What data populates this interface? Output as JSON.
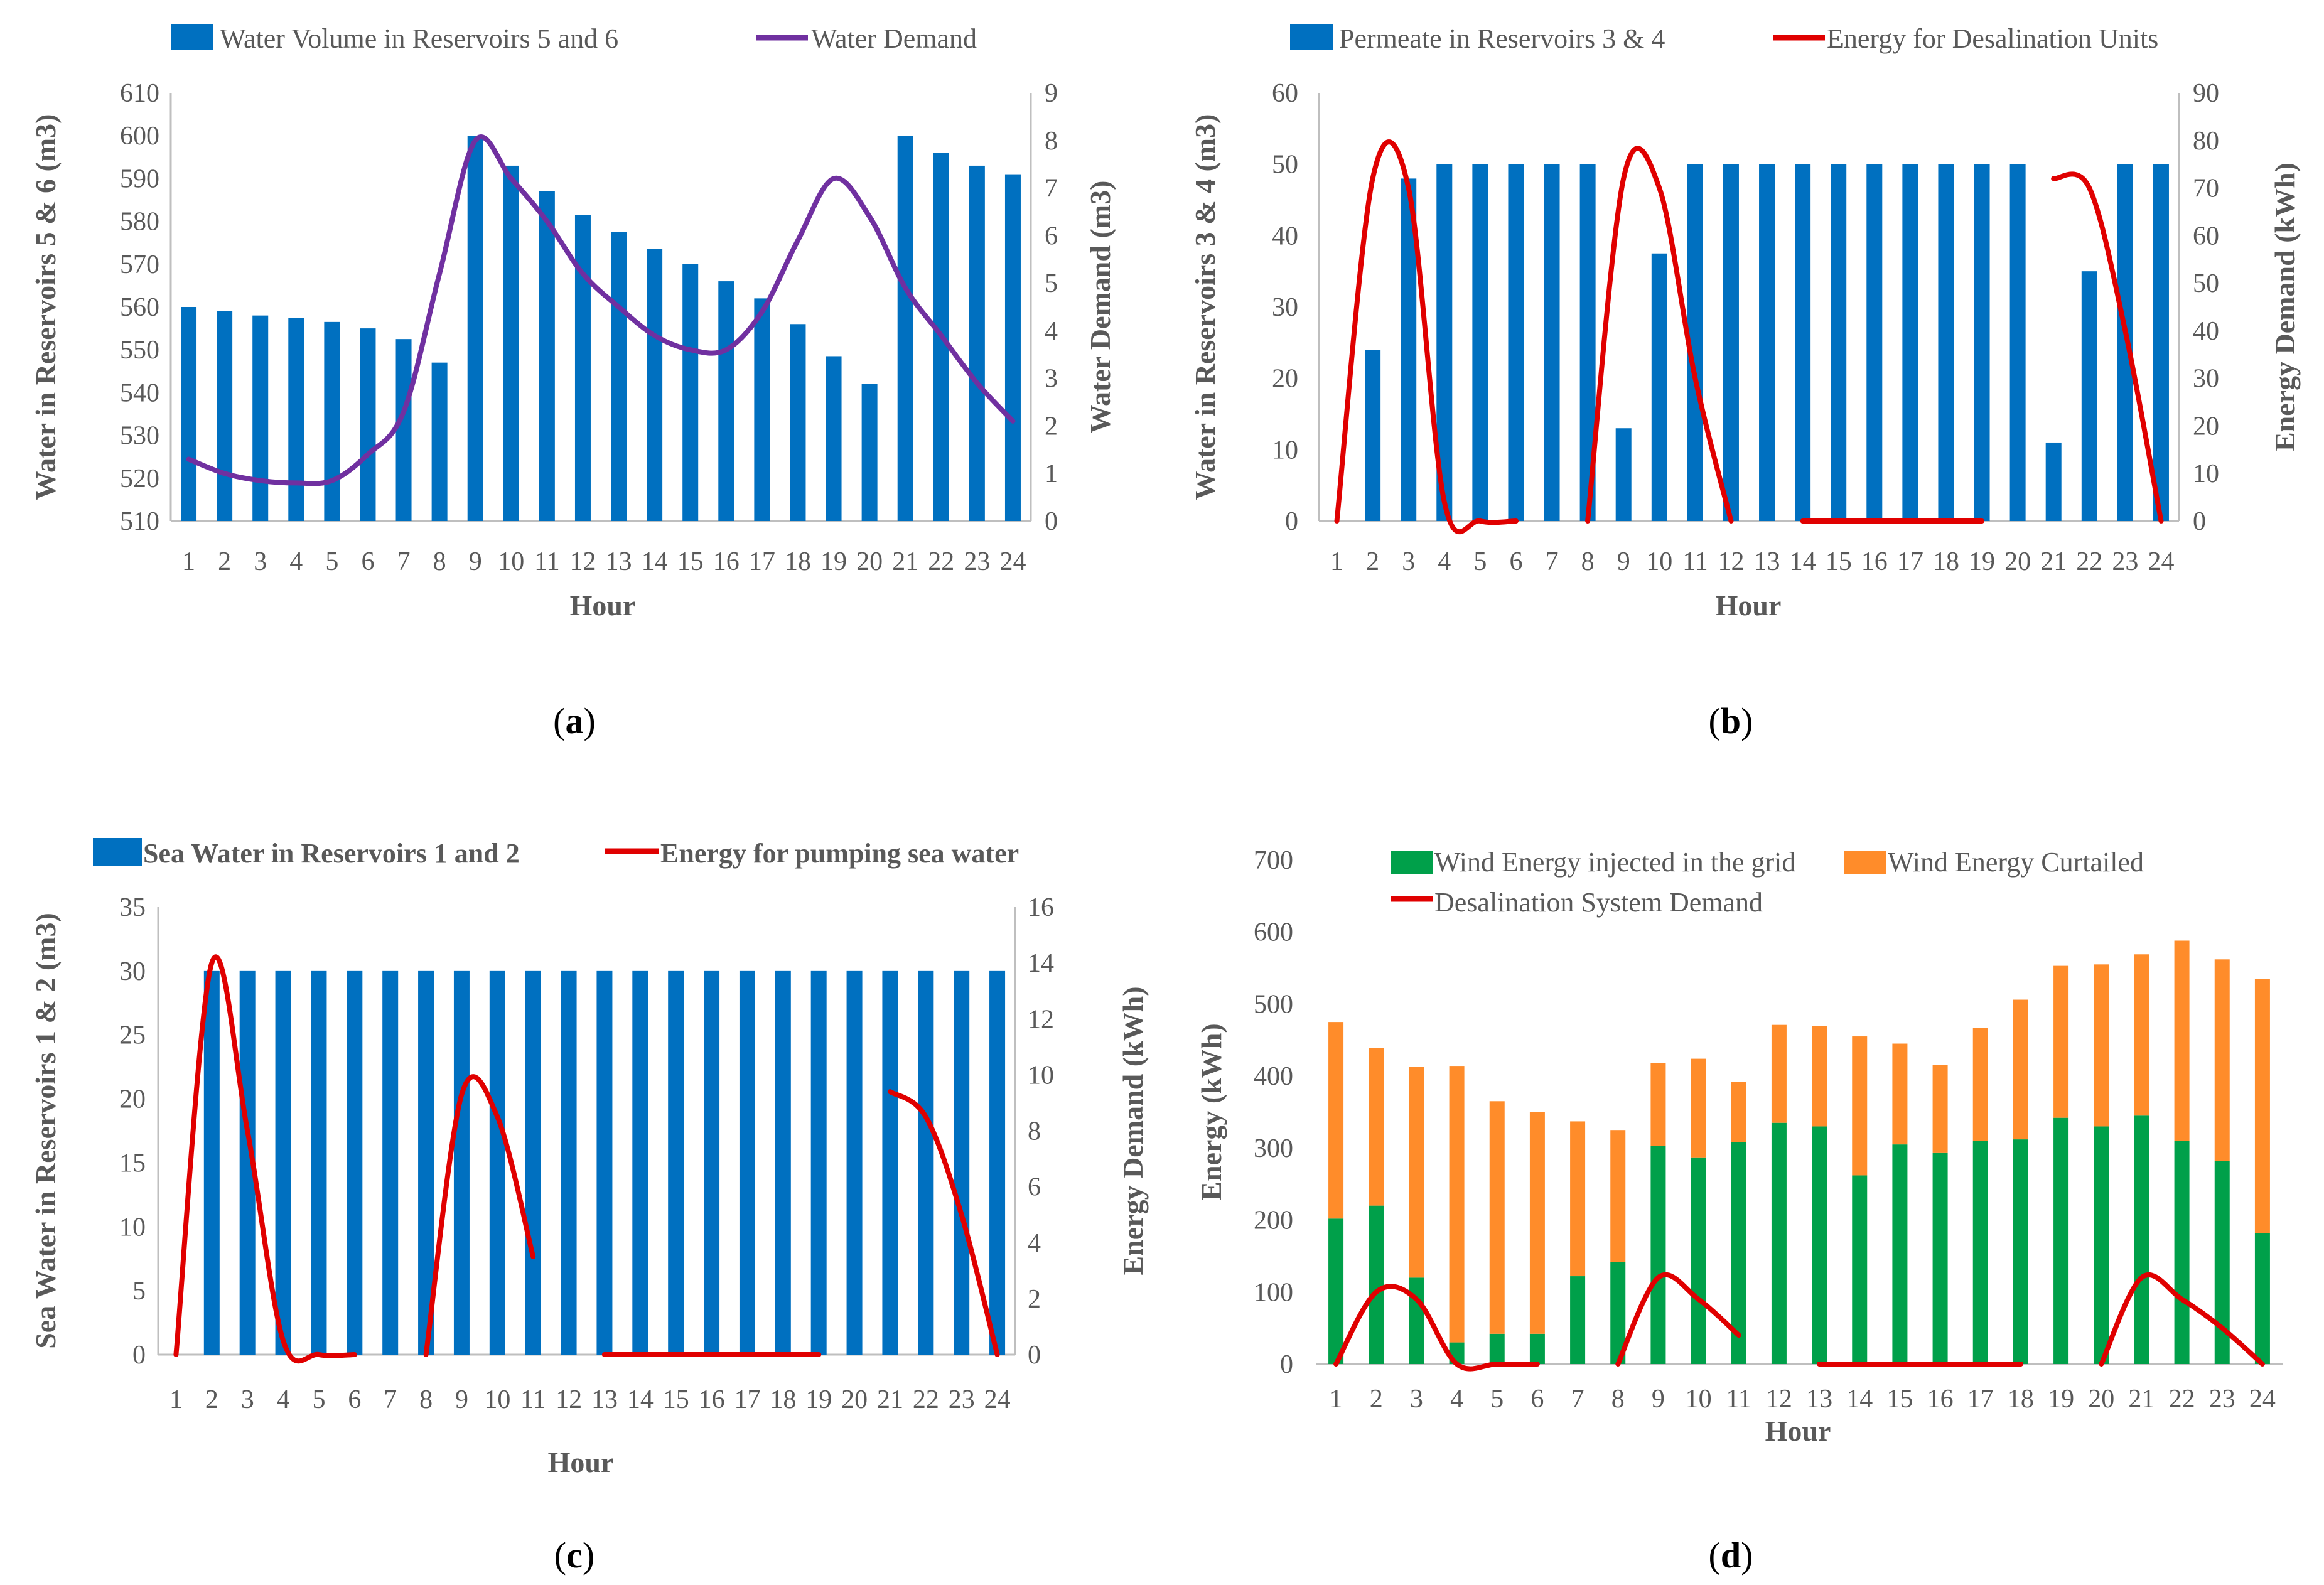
{
  "figure": {
    "panels": [
      {
        "id": "a",
        "label_prefix": "(",
        "label_letter": "a",
        "label_suffix": ")"
      },
      {
        "id": "b",
        "label_prefix": "(",
        "label_letter": "b",
        "label_suffix": ")"
      },
      {
        "id": "c",
        "label_prefix": "(",
        "label_letter": "c",
        "label_suffix": ")"
      },
      {
        "id": "d",
        "label_prefix": "(",
        "label_letter": "d",
        "label_suffix": ")"
      }
    ]
  },
  "chart_data": [
    {
      "id": "a",
      "type": "bar",
      "categories": [
        "1",
        "2",
        "3",
        "4",
        "5",
        "6",
        "7",
        "8",
        "9",
        "10",
        "11",
        "12",
        "13",
        "14",
        "15",
        "16",
        "17",
        "18",
        "19",
        "20",
        "21",
        "22",
        "23",
        "24"
      ],
      "xlabel": "Hour",
      "ylabel": "Water in Reservoirs 5 & 6 (m3)",
      "ylabel_right": "Water Demand (m3)",
      "ylim": [
        510,
        610
      ],
      "yticks": [
        510,
        520,
        530,
        540,
        550,
        560,
        570,
        580,
        590,
        600,
        610
      ],
      "ylim_right": [
        0,
        9
      ],
      "yticks_right": [
        0,
        1,
        2,
        3,
        4,
        5,
        6,
        7,
        8,
        9
      ],
      "legend_position": "top",
      "series": [
        {
          "name": "Water Volume in Reservoirs 5 and 6",
          "kind": "bar",
          "axis": "left",
          "color": "#0070C0",
          "values": [
            560,
            559,
            558,
            557.5,
            556.5,
            555,
            552.5,
            547,
            600,
            593,
            587,
            581.5,
            577.5,
            573.5,
            570,
            566,
            562,
            556,
            548.5,
            542,
            600,
            596,
            593,
            591
          ]
        },
        {
          "name": "Water Demand",
          "kind": "line",
          "axis": "right",
          "color": "#7030A0",
          "values": [
            1.3,
            1.0,
            0.85,
            0.8,
            0.85,
            1.4,
            2.3,
            5.2,
            8.0,
            7.2,
            6.3,
            5.2,
            4.5,
            3.9,
            3.6,
            3.6,
            4.4,
            5.9,
            7.2,
            6.4,
            4.9,
            3.9,
            2.9,
            2.1
          ]
        }
      ]
    },
    {
      "id": "b",
      "type": "bar",
      "categories": [
        "1",
        "2",
        "3",
        "4",
        "5",
        "6",
        "7",
        "8",
        "9",
        "10",
        "11",
        "12",
        "13",
        "14",
        "15",
        "16",
        "17",
        "18",
        "19",
        "20",
        "21",
        "22",
        "23",
        "24"
      ],
      "xlabel": "Hour",
      "ylabel": "Water in Reservoirs 3 & 4  (m3)",
      "ylabel_right": "Energy Demand (kWh)",
      "ylim": [
        0,
        60
      ],
      "yticks": [
        0,
        10,
        20,
        30,
        40,
        50,
        60
      ],
      "ylim_right": [
        0,
        90
      ],
      "yticks_right": [
        0,
        10,
        20,
        30,
        40,
        50,
        60,
        70,
        80,
        90
      ],
      "legend_position": "top",
      "series": [
        {
          "name": "Permeate in Reservoirs 3 & 4",
          "kind": "bar",
          "axis": "left",
          "color": "#0070C0",
          "values": [
            0,
            24,
            48,
            50,
            50,
            50,
            50,
            50,
            13,
            37.5,
            50,
            50,
            50,
            50,
            50,
            50,
            50,
            50,
            50,
            50,
            11,
            35,
            50,
            50
          ]
        },
        {
          "name": "Energy for Desalination Units",
          "kind": "line",
          "axis": "right",
          "color": "#E00000",
          "values": [
            0,
            72,
            70,
            4,
            0,
            0,
            0,
            0,
            72,
            70,
            30,
            0,
            0,
            0,
            0,
            0,
            0,
            0,
            0,
            0,
            72,
            70,
            40,
            0
          ],
          "null_indices": [
            6,
            12,
            19
          ]
        }
      ]
    },
    {
      "id": "c",
      "type": "bar",
      "categories": [
        "1",
        "2",
        "3",
        "4",
        "5",
        "6",
        "7",
        "8",
        "9",
        "10",
        "11",
        "12",
        "13",
        "14",
        "15",
        "16",
        "17",
        "18",
        "19",
        "20",
        "21",
        "22",
        "23",
        "24"
      ],
      "xlabel": "Hour",
      "ylabel": "Sea Water in Reservoirs 1 & 2 (m3)",
      "ylabel_right": "Energy Demand (kWh)",
      "ylim": [
        0,
        35
      ],
      "yticks": [
        0,
        5,
        10,
        15,
        20,
        25,
        30,
        35
      ],
      "ylim_right": [
        0,
        16
      ],
      "yticks_right": [
        0,
        2,
        4,
        6,
        8,
        10,
        12,
        14,
        16
      ],
      "legend_position": "top",
      "series": [
        {
          "name": "Sea Water in Reservoirs 1 and 2",
          "kind": "bar",
          "axis": "left",
          "color": "#0070C0",
          "values": [
            0,
            30,
            30,
            30,
            30,
            30,
            30,
            30,
            30,
            30,
            30,
            30,
            30,
            30,
            30,
            30,
            30,
            30,
            30,
            30,
            30,
            30,
            30,
            30
          ]
        },
        {
          "name": "Energy for pumping sea water",
          "kind": "line",
          "axis": "right",
          "color": "#E00000",
          "values": [
            0,
            14,
            8,
            0.5,
            0,
            0,
            0,
            0,
            9.3,
            8.5,
            3.5,
            0,
            0,
            0,
            0,
            0,
            0,
            0,
            0,
            0,
            9.4,
            8.5,
            5,
            0
          ],
          "null_indices": [
            6,
            11,
            19
          ]
        }
      ]
    },
    {
      "id": "d",
      "type": "bar",
      "stacked": true,
      "categories": [
        "1",
        "2",
        "3",
        "4",
        "5",
        "6",
        "7",
        "8",
        "9",
        "10",
        "11",
        "12",
        "13",
        "14",
        "15",
        "16",
        "17",
        "18",
        "19",
        "20",
        "21",
        "22",
        "23",
        "24"
      ],
      "xlabel": "Hour",
      "ylabel": "Energy (kWh)",
      "ylim": [
        0,
        700
      ],
      "yticks": [
        0,
        100,
        200,
        300,
        400,
        500,
        600,
        700
      ],
      "legend_position": "top",
      "series": [
        {
          "name": "Wind Energy injected in the grid",
          "kind": "bar",
          "color": "#00A04A",
          "values": [
            202,
            220,
            120,
            30,
            42,
            42,
            122,
            142,
            303,
            287,
            308,
            335,
            330,
            262,
            305,
            293,
            310,
            312,
            342,
            330,
            345,
            310,
            282,
            182
          ]
        },
        {
          "name": "Wind Energy Curtailed",
          "kind": "bar",
          "color": "#FF8C2A",
          "values": [
            273,
            219,
            293,
            384,
            323,
            308,
            215,
            183,
            115,
            137,
            84,
            136,
            139,
            193,
            140,
            122,
            157,
            194,
            211,
            225,
            224,
            278,
            280,
            353
          ]
        },
        {
          "name": "Desalination System Demand",
          "kind": "line",
          "color": "#E00000",
          "values": [
            0,
            100,
            90,
            0,
            0,
            0,
            0,
            0,
            120,
            90,
            40,
            0,
            0,
            0,
            0,
            0,
            0,
            0,
            0,
            0,
            120,
            90,
            50,
            0
          ],
          "null_indices": [
            6,
            11,
            18
          ]
        }
      ]
    }
  ]
}
